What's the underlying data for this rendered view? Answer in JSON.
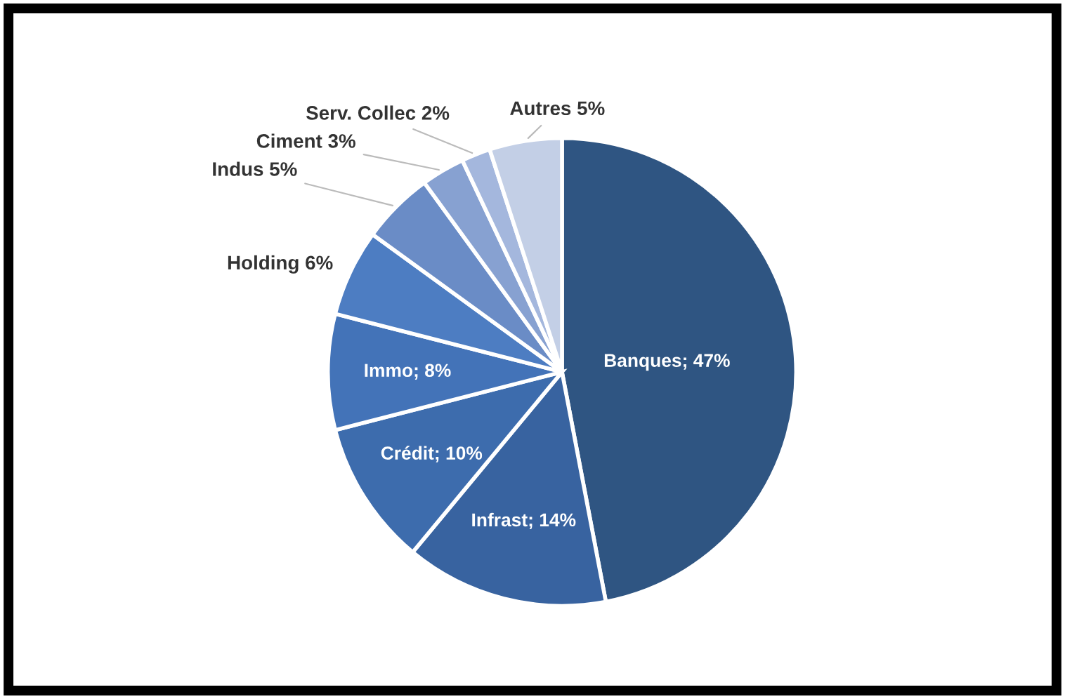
{
  "chart_data": {
    "type": "pie",
    "categories": [
      "Banques",
      "Infrast",
      "Crédit",
      "Immo",
      "Holding",
      "Indus",
      "Ciment",
      "Serv. Collec",
      "Autres"
    ],
    "values": [
      47,
      14,
      10,
      8,
      6,
      5,
      3,
      2,
      5
    ],
    "value_labels": [
      "47%",
      "14%",
      "10%",
      "8%",
      "6%",
      "5%",
      "3%",
      "2%",
      "5%"
    ],
    "colors": [
      "#2f5582",
      "#3863a0",
      "#3d6cad",
      "#4373b8",
      "#4d7dc2",
      "#6a8cc6",
      "#87a1d1",
      "#a4b7dd",
      "#c3cfe6"
    ],
    "legend": false
  }
}
